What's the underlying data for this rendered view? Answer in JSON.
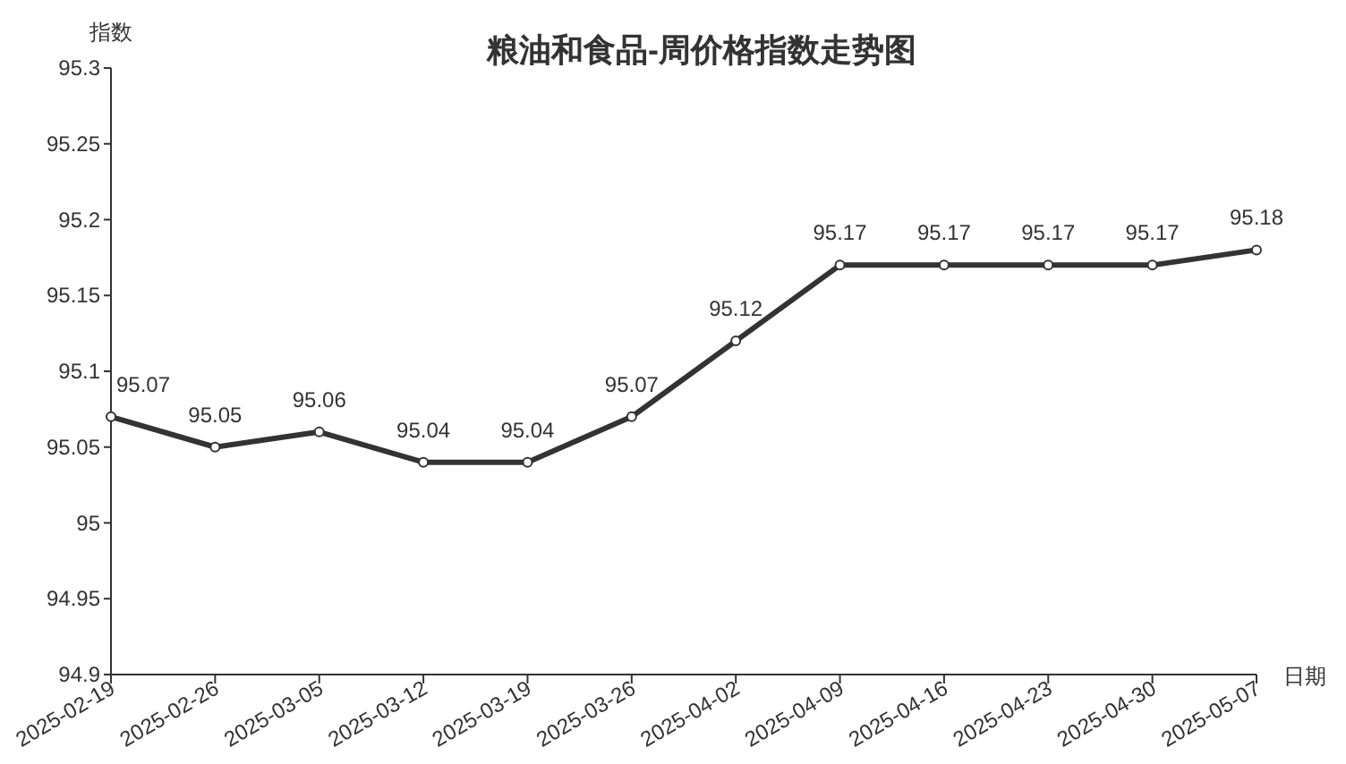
{
  "chart_data": {
    "type": "line",
    "title": "粮油和食品-周价格指数走势图",
    "xlabel": "日期",
    "ylabel": "指数",
    "categories": [
      "2025-02-19",
      "2025-02-26",
      "2025-03-05",
      "2025-03-12",
      "2025-03-19",
      "2025-03-26",
      "2025-04-02",
      "2025-04-09",
      "2025-04-16",
      "2025-04-23",
      "2025-04-30",
      "2025-05-07"
    ],
    "series": [
      {
        "color": "#333333",
        "values": [
          95.07,
          95.05,
          95.06,
          95.04,
          95.04,
          95.07,
          95.12,
          95.17,
          95.17,
          95.17,
          95.17,
          95.18
        ]
      }
    ],
    "ylim": [
      94.9,
      95.3
    ],
    "yticks": [
      94.9,
      94.95,
      95,
      95.05,
      95.1,
      95.15,
      95.2,
      95.25,
      95.3
    ],
    "data_labels": true,
    "marker": "circle",
    "grid": false
  }
}
